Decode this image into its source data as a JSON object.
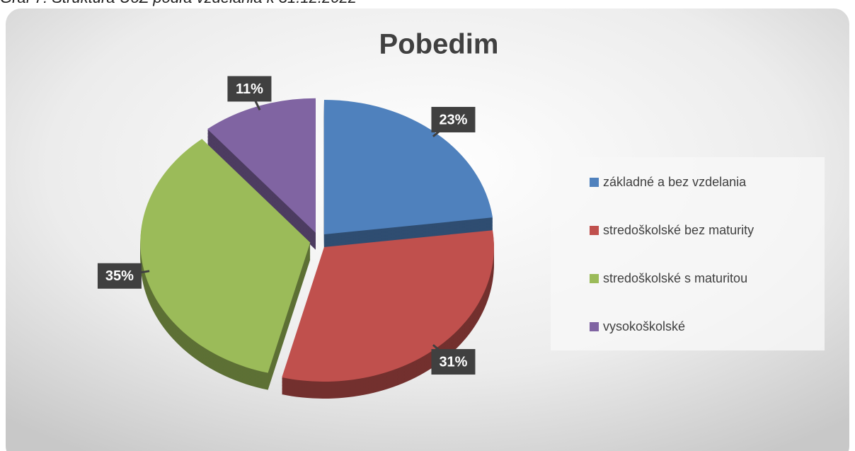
{
  "caption": "Graf 7: Štruktúra UoZ podľa vzdelania k 31.12.2022",
  "chart_data": {
    "type": "pie",
    "title": "Pobedim",
    "categories": [
      "základné a bez vzdelania",
      "stredoškolské bez maturity",
      "stredoškolské s maturitou",
      "vysokoškolské"
    ],
    "values": [
      23,
      31,
      35,
      11
    ],
    "value_labels": [
      "23%",
      "31%",
      "35%",
      "11%"
    ],
    "colors": [
      "#4f81bd",
      "#c0504d",
      "#9bbb59",
      "#8064a2"
    ],
    "legend": "right"
  }
}
